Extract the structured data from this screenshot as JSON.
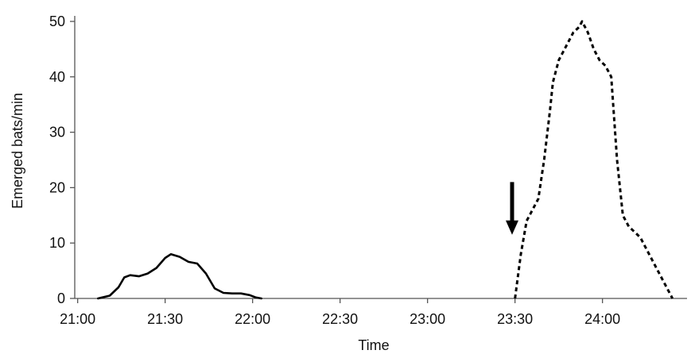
{
  "chart_data": {
    "type": "line",
    "xlabel": "Time",
    "ylabel": "Emerged bats/min",
    "x_tick_labels": [
      "21:00",
      "21:30",
      "22:00",
      "22:30",
      "23:00",
      "23:30",
      "24:00"
    ],
    "x_tick_minutes": [
      0,
      30,
      60,
      90,
      120,
      150,
      180
    ],
    "xlim_minutes_after_2100": [
      -1,
      209
    ],
    "yticks": [
      0,
      10,
      20,
      30,
      40,
      50
    ],
    "ylim": [
      0,
      51
    ],
    "grid": false,
    "legend": "none",
    "series": [
      {
        "style": "solid",
        "color": "#000000",
        "points": [
          {
            "x": 7,
            "y": 0
          },
          {
            "x": 11,
            "y": 0.5
          },
          {
            "x": 14,
            "y": 2
          },
          {
            "x": 16,
            "y": 3.8
          },
          {
            "x": 18,
            "y": 4.2
          },
          {
            "x": 21,
            "y": 4
          },
          {
            "x": 24,
            "y": 4.5
          },
          {
            "x": 27,
            "y": 5.5
          },
          {
            "x": 30,
            "y": 7.3
          },
          {
            "x": 32,
            "y": 8
          },
          {
            "x": 35,
            "y": 7.5
          },
          {
            "x": 38,
            "y": 6.6
          },
          {
            "x": 41,
            "y": 6.3
          },
          {
            "x": 44,
            "y": 4.5
          },
          {
            "x": 47,
            "y": 1.8
          },
          {
            "x": 50,
            "y": 1
          },
          {
            "x": 53,
            "y": 0.9
          },
          {
            "x": 56,
            "y": 0.9
          },
          {
            "x": 59,
            "y": 0.6
          },
          {
            "x": 61,
            "y": 0.2
          },
          {
            "x": 63,
            "y": 0
          }
        ]
      },
      {
        "style": "dashed",
        "color": "#000000",
        "points": [
          {
            "x": 150,
            "y": 0
          },
          {
            "x": 152,
            "y": 8
          },
          {
            "x": 154,
            "y": 14
          },
          {
            "x": 156,
            "y": 16
          },
          {
            "x": 158,
            "y": 18
          },
          {
            "x": 160,
            "y": 25
          },
          {
            "x": 162,
            "y": 34
          },
          {
            "x": 163,
            "y": 39
          },
          {
            "x": 165,
            "y": 43
          },
          {
            "x": 167,
            "y": 45
          },
          {
            "x": 170,
            "y": 48
          },
          {
            "x": 172,
            "y": 49
          },
          {
            "x": 173,
            "y": 50
          },
          {
            "x": 175,
            "y": 48
          },
          {
            "x": 177,
            "y": 45
          },
          {
            "x": 179,
            "y": 43
          },
          {
            "x": 181,
            "y": 42
          },
          {
            "x": 183,
            "y": 40
          },
          {
            "x": 185,
            "y": 25
          },
          {
            "x": 187,
            "y": 15
          },
          {
            "x": 189,
            "y": 13
          },
          {
            "x": 191,
            "y": 12
          },
          {
            "x": 193,
            "y": 11
          },
          {
            "x": 196,
            "y": 8
          },
          {
            "x": 199,
            "y": 5
          },
          {
            "x": 202,
            "y": 2
          },
          {
            "x": 204,
            "y": 0
          }
        ]
      }
    ],
    "annotations": [
      {
        "type": "arrow",
        "direction": "down",
        "x": 149,
        "y_from": 21,
        "y_to": 11.5,
        "color": "#000000"
      }
    ]
  }
}
